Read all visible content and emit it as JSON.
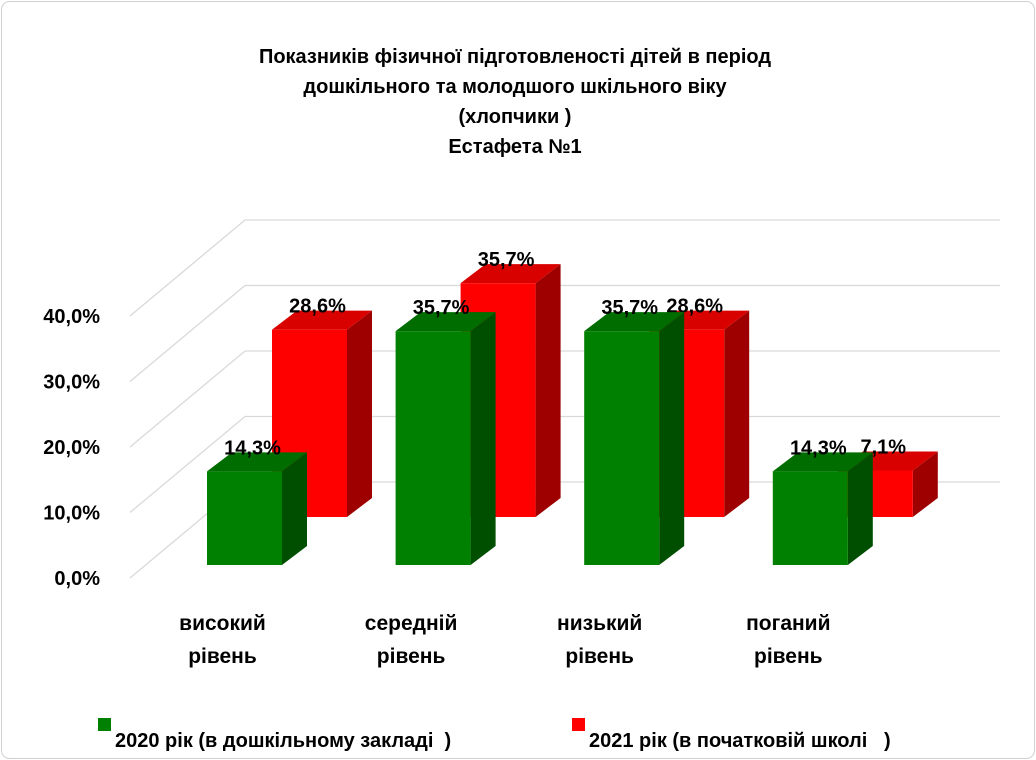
{
  "chart_data": {
    "type": "bar3d",
    "title": [
      "Показників фізичної підготовленості дітей в період",
      "дошкільного та молодшого шкільного віку",
      "(хлопчики )",
      "Естафета №1"
    ],
    "categories": [
      "високий рівень",
      "середній рівень",
      "низький рівень",
      "поганий рівень"
    ],
    "series": [
      {
        "name": "2020 рік (в дошкільному закладі  )",
        "color": "#008000",
        "values": [
          14.3,
          35.7,
          35.7,
          14.3
        ],
        "value_labels": [
          "14,3%",
          "35,7%",
          "35,7%",
          "14,3%"
        ]
      },
      {
        "name": "2021 рік (в початковій школі   )",
        "color": "#ff0000",
        "values": [
          28.6,
          35.7,
          28.6,
          7.1
        ],
        "value_labels": [
          "28,6%",
          "35,7%",
          "28,6%",
          "7,1%"
        ]
      }
    ],
    "ylim": [
      0,
      40
    ],
    "yticks": [
      {
        "value": 0,
        "label": "0,0%"
      },
      {
        "value": 10,
        "label": "10,0%"
      },
      {
        "value": 20,
        "label": "20,0%"
      },
      {
        "value": 30,
        "label": "30,0%"
      },
      {
        "value": 40,
        "label": "40,0%"
      }
    ],
    "grid": true,
    "legend": "bottom"
  }
}
